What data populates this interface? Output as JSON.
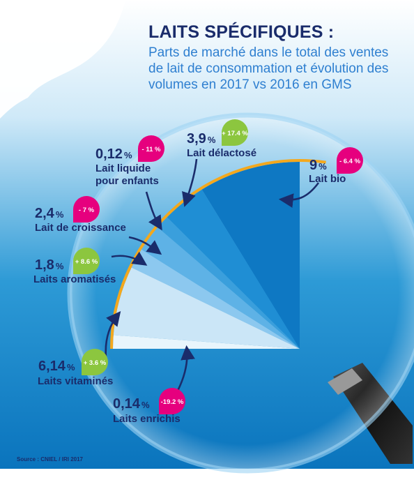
{
  "title": "LAITS SPÉCIFIQUES :",
  "subtitle": "Parts de marché dans le total des ventes de lait de consommation et évolution des volumes en 2017 vs 2016 en GMS",
  "source": "Source : CNIEL / IRI 2017",
  "percent_sign": "%",
  "chart_data": {
    "type": "pie",
    "title": "LAITS SPÉCIFIQUES :",
    "value_unit": "%",
    "segments": [
      {
        "name": "Lait bio",
        "value": 9,
        "value_label": "9",
        "change": "- 6.4 %",
        "change_value": -6.4,
        "trend": "down"
      },
      {
        "name": "Lait délactosé",
        "value": 3.9,
        "value_label": "3,9",
        "change": "+ 17.4 %",
        "change_value": 17.4,
        "trend": "up"
      },
      {
        "name": "Lait liquide pour enfants",
        "value": 0.12,
        "value_label": "0,12",
        "change": "- 11 %",
        "change_value": -11,
        "trend": "down"
      },
      {
        "name": "Lait de croissance",
        "value": 2.4,
        "value_label": "2,4",
        "change": "- 7 %",
        "change_value": -7,
        "trend": "down"
      },
      {
        "name": "Laits aromatisés",
        "value": 1.8,
        "value_label": "1,8",
        "change": "+ 8.6 %",
        "change_value": 8.6,
        "trend": "up"
      },
      {
        "name": "Laits vitaminés",
        "value": 6.14,
        "value_label": "6,14",
        "change": "+ 3.6 %",
        "change_value": 3.6,
        "trend": "up"
      },
      {
        "name": "Laits enrichis",
        "value": 0.14,
        "value_label": "0,14",
        "change": "-19.2 %",
        "change_value": -19.2,
        "trend": "down"
      }
    ],
    "labels": [
      {
        "label_lines": [
          "Lait bio"
        ]
      },
      {
        "label_lines": [
          "Lait délactosé"
        ]
      },
      {
        "label_lines": [
          "Lait liquide",
          "pour enfants"
        ]
      },
      {
        "label_lines": [
          "Lait de croissance"
        ]
      },
      {
        "label_lines": [
          "Laits aromatisés"
        ]
      },
      {
        "label_lines": [
          "Laits vitaminés"
        ]
      },
      {
        "label_lines": [
          "Laits enrichis"
        ]
      }
    ]
  },
  "colors": {
    "title": "#1a2c6b",
    "subtitle": "#2e7fd0",
    "up_badge": "#8cc63f",
    "down_badge": "#e6007e",
    "arc": "#f4a81d",
    "slices": [
      "#0e78c3",
      "#1f8ed4",
      "#3a9fdc",
      "#5eb2e6",
      "#8cc8ef",
      "#cbe6f7",
      "#e8f5fc"
    ]
  }
}
